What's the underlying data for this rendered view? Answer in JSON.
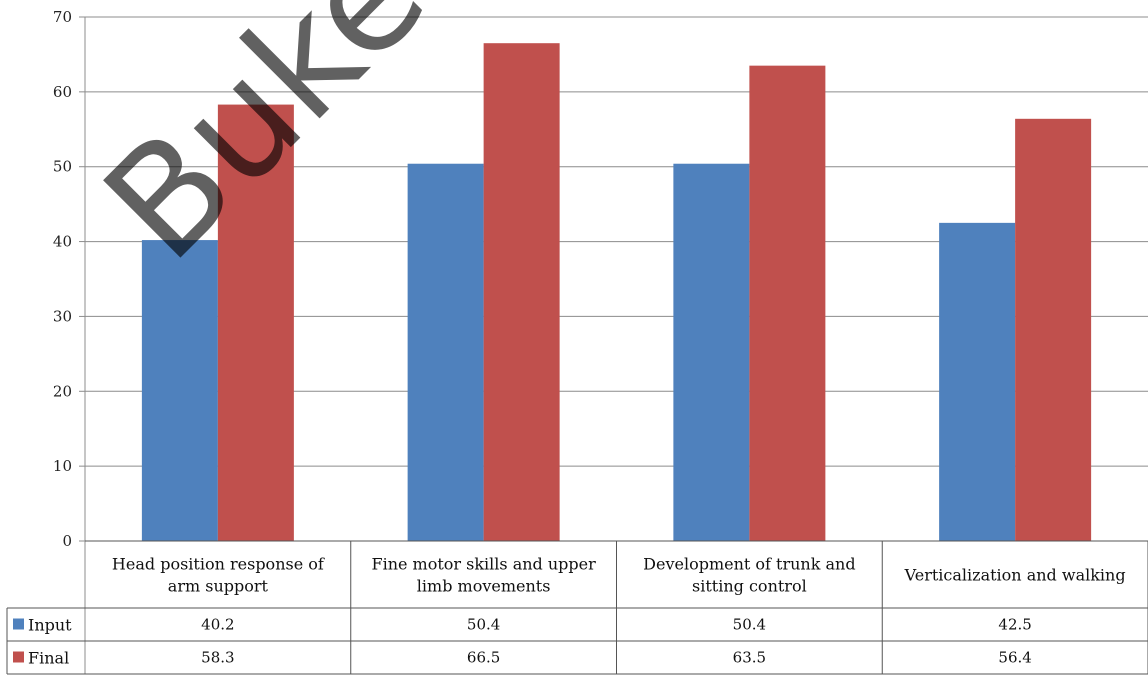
{
  "chart_data": {
    "type": "bar",
    "categories": [
      [
        "Head position response of",
        "arm support"
      ],
      [
        "Fine motor skills and upper",
        "limb movements"
      ],
      [
        "Development of trunk and",
        "sitting control"
      ],
      [
        "Verticalization and walking"
      ]
    ],
    "series": [
      {
        "name": "Input",
        "color": "#4F81BD",
        "values": [
          40.2,
          50.4,
          50.4,
          42.5
        ],
        "labels": [
          "40.2",
          "50.4",
          "50.4",
          "42.5"
        ]
      },
      {
        "name": "Final",
        "color": "#C0504D",
        "values": [
          58.3,
          66.5,
          63.5,
          56.4
        ],
        "labels": [
          "58.3",
          "66.5",
          "63.5",
          "56.4"
        ]
      }
    ],
    "yticks": [
      "0",
      "10",
      "20",
      "30",
      "40",
      "50",
      "60",
      "70"
    ],
    "ylim": [
      0,
      70
    ],
    "grid": true,
    "legend": "data-table-left",
    "watermark": "Buke"
  }
}
